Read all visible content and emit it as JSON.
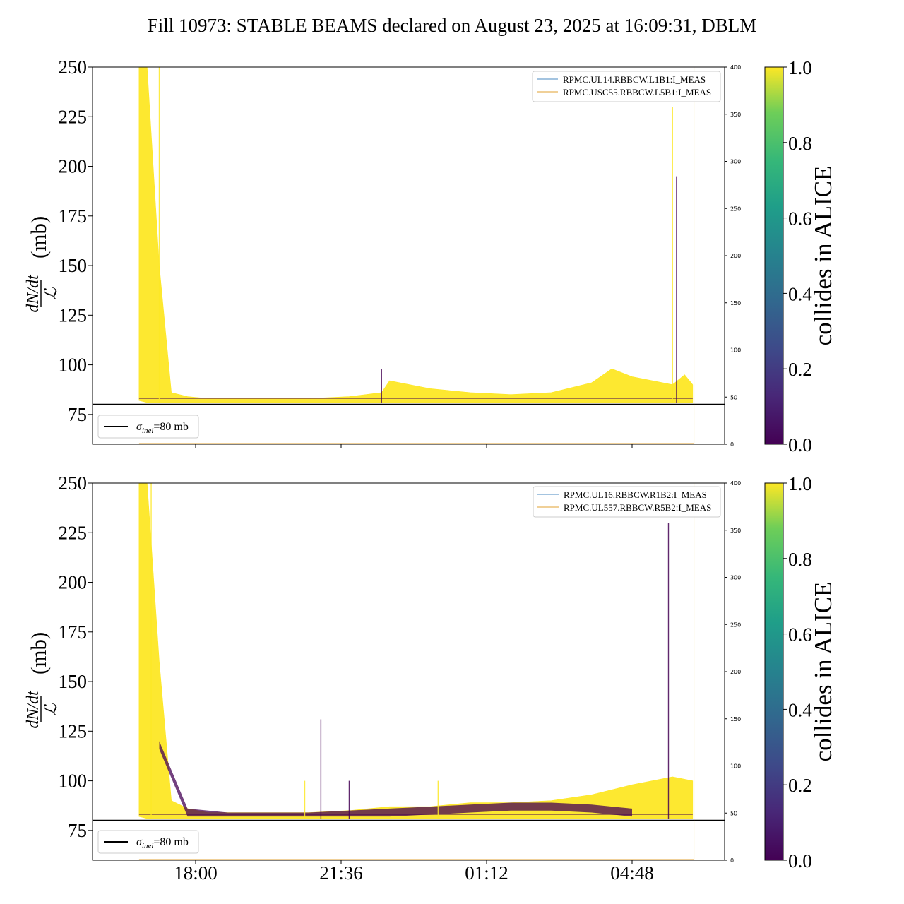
{
  "title": "Fill 10973: STABLE BEAMS declared on August 23, 2025 at 16:09:31, DBLM",
  "ylabel": {
    "numerator": "dN/dt",
    "denominator": "ℒ",
    "unit": "(mb)"
  },
  "colorbar": {
    "label": "collides in ALICE",
    "ticks": [
      "0.0",
      "0.2",
      "0.4",
      "0.6",
      "0.8",
      "1.0"
    ]
  },
  "sigma_legend": "=80 mb",
  "sigma_symbol": "σ",
  "sigma_sub": "inel",
  "colors": {
    "low": "#440154",
    "high": "#fde725",
    "series_blue": "#4a88c0",
    "series_orange": "#e0a030",
    "reference_line": "#000000"
  },
  "chart_data": [
    {
      "type": "line",
      "panel": "top",
      "ylim": [
        60,
        250
      ],
      "y_ticks": [
        75,
        100,
        125,
        150,
        175,
        200,
        225,
        250
      ],
      "y2lim": [
        0,
        400
      ],
      "y2_ticks": [
        0,
        50,
        100,
        150,
        200,
        250,
        300,
        350,
        400
      ],
      "x_ticks": [
        "18:00",
        "21:36",
        "01:12",
        "04:48"
      ],
      "reference_value": 80,
      "legend": [
        "RPMC.UL14.RBBCW.L1B1:I_MEAS",
        "RPMC.USC55.RBBCW.L5B1:I_MEAS"
      ],
      "envelope": {
        "x_hours": [
          -0.2,
          0.0,
          0.3,
          0.6,
          1.0,
          1.5,
          2.0,
          3.0,
          4.0,
          5.0,
          5.8,
          6.0,
          7.0,
          8.0,
          9.0,
          10.0,
          11.0,
          11.5,
          12.0,
          12.5,
          13.0,
          13.3,
          13.5
        ],
        "upper": [
          250,
          250,
          150,
          86,
          84,
          83,
          83,
          83,
          83,
          84,
          86,
          92,
          88,
          86,
          85,
          86,
          91,
          98,
          94,
          92,
          90,
          95,
          90
        ],
        "lower": [
          82,
          81,
          81,
          81,
          81,
          81,
          81,
          81,
          81,
          81,
          81,
          81,
          81,
          81,
          81,
          81,
          81,
          81,
          81,
          81,
          81,
          81,
          81
        ]
      },
      "spikes": [
        {
          "x_hours": 0.3,
          "value": 250
        },
        {
          "x_hours": 5.8,
          "value": 98
        },
        {
          "x_hours": 13.0,
          "value": 230
        },
        {
          "x_hours": 13.1,
          "value": 195
        }
      ]
    },
    {
      "type": "line",
      "panel": "bottom",
      "ylim": [
        60,
        250
      ],
      "y_ticks": [
        75,
        100,
        125,
        150,
        175,
        200,
        225,
        250
      ],
      "y2lim": [
        0,
        400
      ],
      "y2_ticks": [
        0,
        50,
        100,
        150,
        200,
        250,
        300,
        350,
        400
      ],
      "x_ticks": [
        "18:00",
        "21:36",
        "01:12",
        "04:48"
      ],
      "reference_value": 80,
      "legend": [
        "RPMC.UL16.RBBCW.R1B2:I_MEAS",
        "RPMC.UL557.RBBCW.R5B2:I_MEAS"
      ],
      "envelope": {
        "x_hours": [
          -0.2,
          0.0,
          0.3,
          0.6,
          1.0,
          1.5,
          2.0,
          3.0,
          4.0,
          5.0,
          6.0,
          7.0,
          8.0,
          9.0,
          10.0,
          11.0,
          12.0,
          12.5,
          13.0,
          13.5
        ],
        "upper": [
          250,
          250,
          160,
          90,
          86,
          84,
          84,
          84,
          84,
          85,
          87,
          87,
          89,
          89,
          90,
          93,
          98,
          100,
          102,
          100
        ],
        "lower": [
          82,
          81,
          81,
          81,
          81,
          81,
          81,
          81,
          81,
          81,
          81,
          81,
          81,
          81,
          81,
          81,
          81,
          81,
          81,
          81
        ]
      },
      "purple_band": {
        "x_hours": [
          0.3,
          1.0,
          2.0,
          4.0,
          6.0,
          7.0,
          8.0,
          9.0,
          10.0,
          11.0,
          12.0
        ],
        "upper": [
          120,
          86,
          84,
          84,
          86,
          87,
          88,
          89,
          89,
          88,
          86
        ]
      },
      "spikes": [
        {
          "x_hours": 0.1,
          "value": 250
        },
        {
          "x_hours": 4.3,
          "value": 131
        },
        {
          "x_hours": 3.9,
          "value": 100
        },
        {
          "x_hours": 5.0,
          "value": 100
        },
        {
          "x_hours": 7.2,
          "value": 100
        },
        {
          "x_hours": 12.9,
          "value": 230
        }
      ]
    }
  ]
}
